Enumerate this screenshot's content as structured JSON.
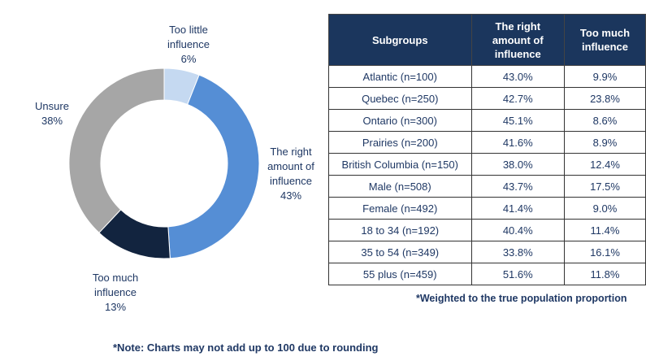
{
  "chart_data": [
    {
      "type": "pie",
      "variant": "donut",
      "slices": [
        {
          "label_lines": [
            "Too little",
            "influence"
          ],
          "value": 6,
          "display": "6%",
          "color": "#C5D9F1"
        },
        {
          "label_lines": [
            "The right",
            "amount of",
            "influence"
          ],
          "value": 43,
          "display": "43%",
          "color": "#558ED5"
        },
        {
          "label_lines": [
            "Too much",
            "influence"
          ],
          "value": 13,
          "display": "13%",
          "color": "#12243F"
        },
        {
          "label_lines": [
            "Unsure"
          ],
          "value": 38,
          "display": "38%",
          "color": "#A6A6A6"
        }
      ]
    },
    {
      "type": "table",
      "headers": [
        "Subgroups",
        "The right amount of influence",
        "Too much influence"
      ],
      "rows": [
        [
          "Atlantic (n=100)",
          "43.0%",
          "9.9%"
        ],
        [
          "Quebec (n=250)",
          "42.7%",
          "23.8%"
        ],
        [
          "Ontario (n=300)",
          "45.1%",
          "8.6%"
        ],
        [
          "Prairies (n=200)",
          "41.6%",
          "8.9%"
        ],
        [
          "British Columbia (n=150)",
          "38.0%",
          "12.4%"
        ],
        [
          "Male (n=508)",
          "43.7%",
          "17.5%"
        ],
        [
          "Female (n=492)",
          "41.4%",
          "9.0%"
        ],
        [
          "18 to 34 (n=192)",
          "40.4%",
          "11.4%"
        ],
        [
          "35 to 54 (n=349)",
          "33.8%",
          "16.1%"
        ],
        [
          "55 plus (n=459)",
          "51.6%",
          "11.8%"
        ]
      ]
    }
  ],
  "weighted_note": "*Weighted to the true population proportion",
  "rounding_note": "*Note: Charts may not add up to 100 due to rounding"
}
